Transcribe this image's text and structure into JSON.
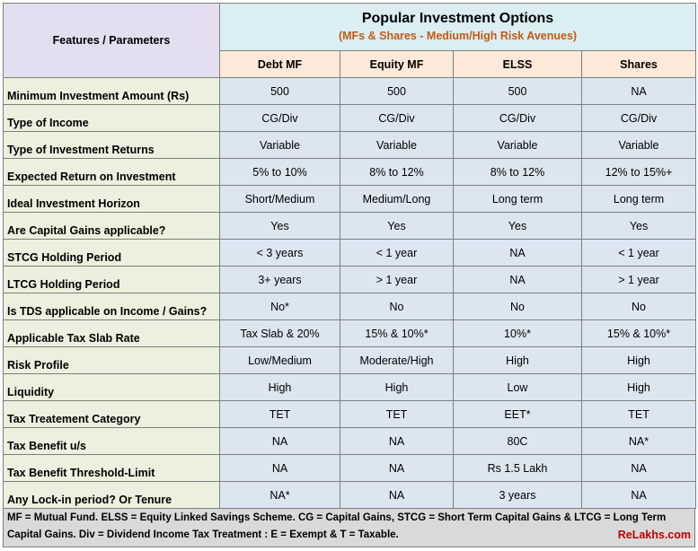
{
  "header": {
    "param_label": "Features / Parameters",
    "title": "Popular Investment Options",
    "subtitle": "(MFs & Shares - Medium/High Risk Avenues)"
  },
  "columns": [
    "Debt MF",
    "Equity MF",
    "ELSS",
    "Shares"
  ],
  "rows": [
    {
      "label": "Minimum Investment Amount (Rs)",
      "values": [
        "500",
        "500",
        "500",
        "NA"
      ]
    },
    {
      "label": "Type of Income",
      "values": [
        "CG/Div",
        "CG/Div",
        "CG/Div",
        "CG/Div"
      ]
    },
    {
      "label": "Type of Investment Returns",
      "values": [
        "Variable",
        "Variable",
        "Variable",
        "Variable"
      ]
    },
    {
      "label": "Expected Return on Investment",
      "values": [
        "5% to 10%",
        "8% to 12%",
        "8% to 12%",
        "12% to 15%+"
      ]
    },
    {
      "label": "Ideal Investment Horizon",
      "values": [
        "Short/Medium",
        "Medium/Long",
        "Long term",
        "Long term"
      ]
    },
    {
      "label": "Are Capital Gains applicable?",
      "values": [
        "Yes",
        "Yes",
        "Yes",
        "Yes"
      ]
    },
    {
      "label": "STCG Holding Period",
      "values": [
        "< 3 years",
        "< 1 year",
        "NA",
        "< 1 year"
      ]
    },
    {
      "label": "LTCG Holding Period",
      "values": [
        "3+ years",
        "> 1 year",
        "NA",
        "> 1 year"
      ]
    },
    {
      "label": "Is TDS applicable on Income / Gains?",
      "values": [
        "No*",
        "No",
        "No",
        "No"
      ]
    },
    {
      "label": "Applicable Tax Slab Rate",
      "values": [
        "Tax Slab & 20%",
        "15% & 10%*",
        "10%*",
        "15% & 10%*"
      ]
    },
    {
      "label": "Risk Profile",
      "values": [
        "Low/Medium",
        "Moderate/High",
        "High",
        "High"
      ]
    },
    {
      "label": "Liquidity",
      "values": [
        "High",
        "High",
        "Low",
        "High"
      ]
    },
    {
      "label": "Tax Treatement Category",
      "values": [
        "TET",
        "TET",
        "EET*",
        "TET"
      ]
    },
    {
      "label": "Tax Benefit u/s",
      "values": [
        "NA",
        "NA",
        "80C",
        "NA*"
      ]
    },
    {
      "label": "Tax Benefit Threshold-Limit",
      "values": [
        "NA",
        "NA",
        "Rs 1.5 Lakh",
        "NA"
      ]
    },
    {
      "label": "Any Lock-in period? Or Tenure",
      "values": [
        "NA*",
        "NA",
        "3 years",
        "NA"
      ]
    }
  ],
  "footer": {
    "note": "MF = Mutual Fund. ELSS = Equity Linked Savings Scheme. CG = Capital Gains, STCG = Short Term Capital Gains & LTCG = Long Term Capital Gains. Div = Dividend Income Tax Treatment : E = Exempt & T = Taxable.",
    "brand": "ReLakhs.com"
  },
  "colors": {
    "param_header_bg": "#e3dff0",
    "title_bg": "#daeef3",
    "subtitle_text": "#c55a11",
    "column_header_bg": "#fde9d9",
    "row_label_bg": "#ebf1de",
    "cell_bg": "#dce6f1",
    "footer_bg": "#d9d9d9",
    "brand_text": "#c00000"
  }
}
